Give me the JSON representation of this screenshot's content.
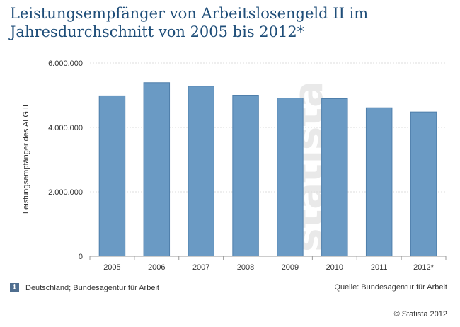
{
  "chart_data": {
    "type": "bar",
    "title": "Leistungsempfänger von Arbeitslosengeld II im Jahresdurchschnitt von 2005 bis 2012*",
    "categories": [
      "2005",
      "2006",
      "2007",
      "2008",
      "2009",
      "2010",
      "2011",
      "2012*"
    ],
    "values": [
      4980000,
      5390000,
      5280000,
      5000000,
      4910000,
      4890000,
      4610000,
      4480000
    ],
    "ylabel": "Leistungsempfänger des ALG II",
    "xlabel": "",
    "ylim": [
      0,
      6000000
    ],
    "yticks": [
      0,
      2000000,
      4000000,
      6000000
    ],
    "ytick_labels": [
      "0",
      "2.000.000",
      "4.000.000",
      "6.000.000"
    ],
    "grid": true,
    "bar_color": "#6a9ac4",
    "bar_border": "#4f7fab"
  },
  "watermark": "statista",
  "footer": {
    "info_icon": "info-icon",
    "info_glyph": "i",
    "region_source": "Deutschland; Bundesagentur für Arbeit",
    "quelle": "Quelle: Bundesagentur für Arbeit",
    "copyright": "© Statista 2012"
  }
}
